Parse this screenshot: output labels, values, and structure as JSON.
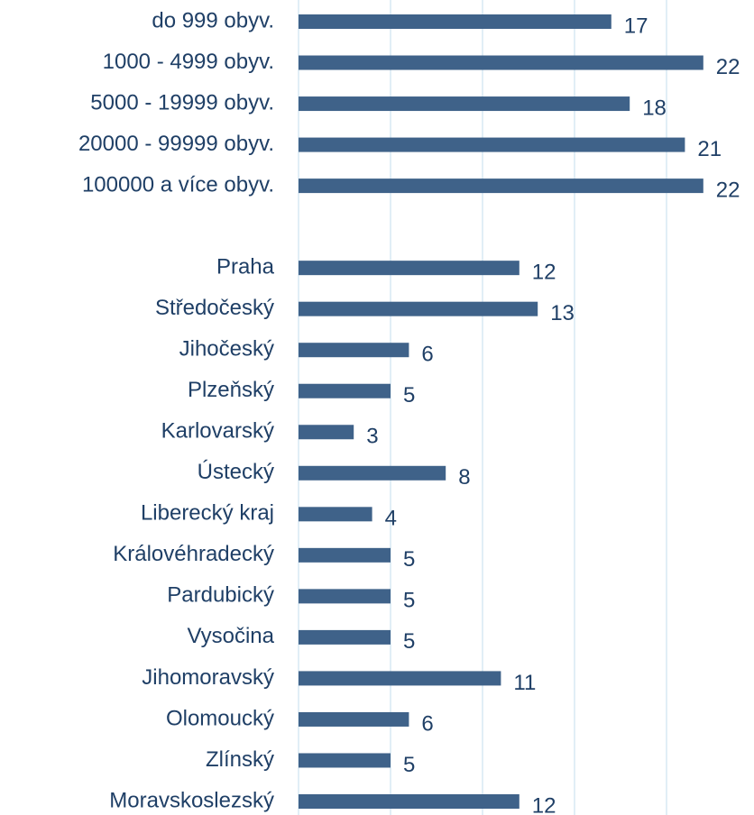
{
  "chart_data": {
    "type": "bar",
    "orientation": "horizontal",
    "categories": [
      "do 999 obyv.",
      "1000 - 4999 obyv.",
      "5000 - 19999 obyv.",
      "20000 - 99999 obyv.",
      "100000 a více obyv.",
      null,
      "Praha",
      "Středočeský",
      "Jihočeský",
      "Plzeňský",
      "Karlovarský",
      "Ústecký",
      "Liberecký kraj",
      "Královéhradecký",
      "Pardubický",
      "Vysočina",
      "Jihomoravský",
      "Olomoucký",
      "Zlínský",
      "Moravskoslezský"
    ],
    "values": [
      17,
      22,
      18,
      21,
      22,
      null,
      12,
      13,
      6,
      5,
      3,
      8,
      4,
      5,
      5,
      5,
      11,
      6,
      5,
      12
    ],
    "color": "#3f6289",
    "xlim": [
      0,
      24
    ],
    "xticks": [
      0,
      5,
      10,
      15,
      20
    ],
    "grid": true
  }
}
